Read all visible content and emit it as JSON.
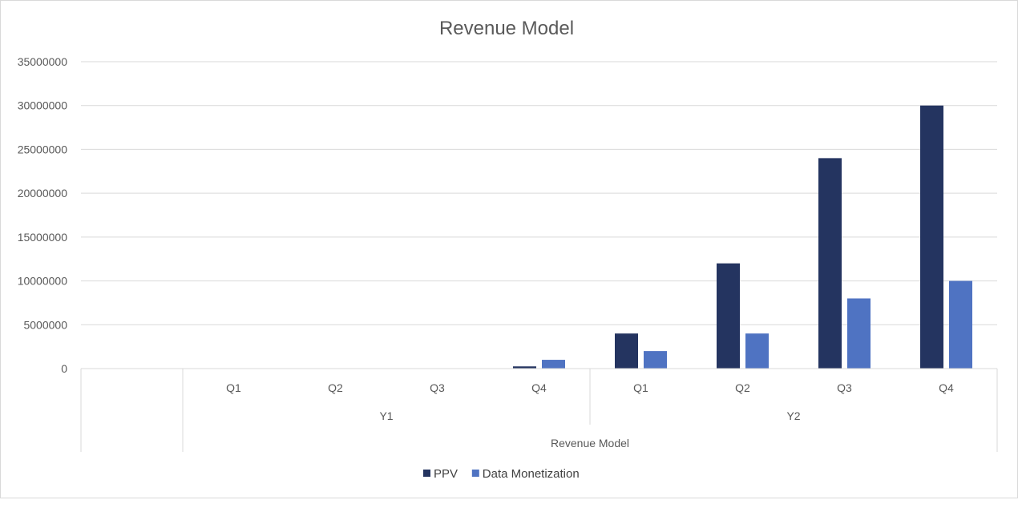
{
  "chart_data": {
    "type": "bar",
    "title": "Revenue Model",
    "categories": [
      "Q1",
      "Q2",
      "Q3",
      "Q4",
      "Q1",
      "Q2",
      "Q3",
      "Q4"
    ],
    "groups": [
      {
        "label": "Y1",
        "span": [
          0,
          3
        ]
      },
      {
        "label": "Y2",
        "span": [
          4,
          7
        ]
      }
    ],
    "outer_label": "Revenue Model",
    "series": [
      {
        "name": "PPV",
        "color": "#243460",
        "values": [
          0,
          0,
          0,
          250000,
          4000000,
          12000000,
          24000000,
          30000000
        ]
      },
      {
        "name": "Data Monetization",
        "color": "#4f73c2",
        "values": [
          0,
          0,
          0,
          1000000,
          2000000,
          4000000,
          8000000,
          10000000
        ]
      }
    ],
    "ylim": [
      0,
      35000000
    ],
    "yticks": [
      "0",
      "5000000",
      "10000000",
      "15000000",
      "20000000",
      "25000000",
      "30000000",
      "35000000"
    ],
    "grid": true,
    "legend": "bottom"
  }
}
